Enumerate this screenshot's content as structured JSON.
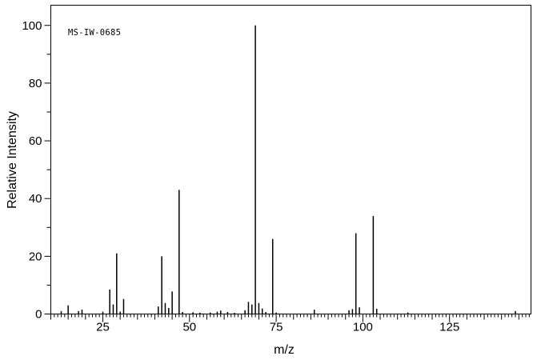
{
  "figure": {
    "background": "#ffffff",
    "foreground": "#000000"
  },
  "chart_data": {
    "type": "bar",
    "subtype": "mass-spectrum-stick-plot",
    "spectrum_id": "MS-IW-0685",
    "xlabel": "m/z",
    "ylabel": "Relative Intensity",
    "xlim": [
      10,
      148.5
    ],
    "ylim": [
      0,
      107
    ],
    "x_ticks_labeled": [
      25,
      50,
      75,
      100,
      125
    ],
    "x_tick_minor_step": 1,
    "x_tick_medium_step": 5,
    "y_ticks_labeled": [
      0,
      20,
      40,
      60,
      80,
      100
    ],
    "y_tick_minor_step": 10,
    "grid": "off",
    "legend": "none",
    "peaks": [
      {
        "mz": 13,
        "intensity": 1.0
      },
      {
        "mz": 15,
        "intensity": 3.0
      },
      {
        "mz": 18,
        "intensity": 1.0
      },
      {
        "mz": 19,
        "intensity": 1.5
      },
      {
        "mz": 25,
        "intensity": 0.8
      },
      {
        "mz": 27,
        "intensity": 8.5
      },
      {
        "mz": 28,
        "intensity": 3.3
      },
      {
        "mz": 29,
        "intensity": 21
      },
      {
        "mz": 30,
        "intensity": 0.8
      },
      {
        "mz": 31,
        "intensity": 5.2
      },
      {
        "mz": 41,
        "intensity": 2.6
      },
      {
        "mz": 42,
        "intensity": 20
      },
      {
        "mz": 43,
        "intensity": 3.8
      },
      {
        "mz": 44,
        "intensity": 2.1
      },
      {
        "mz": 45,
        "intensity": 7.8
      },
      {
        "mz": 47,
        "intensity": 43
      },
      {
        "mz": 48,
        "intensity": 0.7
      },
      {
        "mz": 51,
        "intensity": 0.6
      },
      {
        "mz": 53,
        "intensity": 0.4
      },
      {
        "mz": 56,
        "intensity": 0.5
      },
      {
        "mz": 58,
        "intensity": 0.8
      },
      {
        "mz": 59,
        "intensity": 1.2
      },
      {
        "mz": 61,
        "intensity": 0.7
      },
      {
        "mz": 63,
        "intensity": 0.4
      },
      {
        "mz": 66,
        "intensity": 1.3
      },
      {
        "mz": 67,
        "intensity": 4.2
      },
      {
        "mz": 68,
        "intensity": 3.3
      },
      {
        "mz": 69,
        "intensity": 100
      },
      {
        "mz": 70,
        "intensity": 3.8
      },
      {
        "mz": 71,
        "intensity": 1.9
      },
      {
        "mz": 72,
        "intensity": 0.7
      },
      {
        "mz": 74,
        "intensity": 26
      },
      {
        "mz": 75,
        "intensity": 0.5
      },
      {
        "mz": 86,
        "intensity": 1.5
      },
      {
        "mz": 96,
        "intensity": 1.3
      },
      {
        "mz": 97,
        "intensity": 1.7
      },
      {
        "mz": 98,
        "intensity": 28
      },
      {
        "mz": 99,
        "intensity": 2.3
      },
      {
        "mz": 103,
        "intensity": 34
      },
      {
        "mz": 104,
        "intensity": 1.8
      },
      {
        "mz": 113,
        "intensity": 0.5
      },
      {
        "mz": 144,
        "intensity": 1.0
      }
    ]
  }
}
